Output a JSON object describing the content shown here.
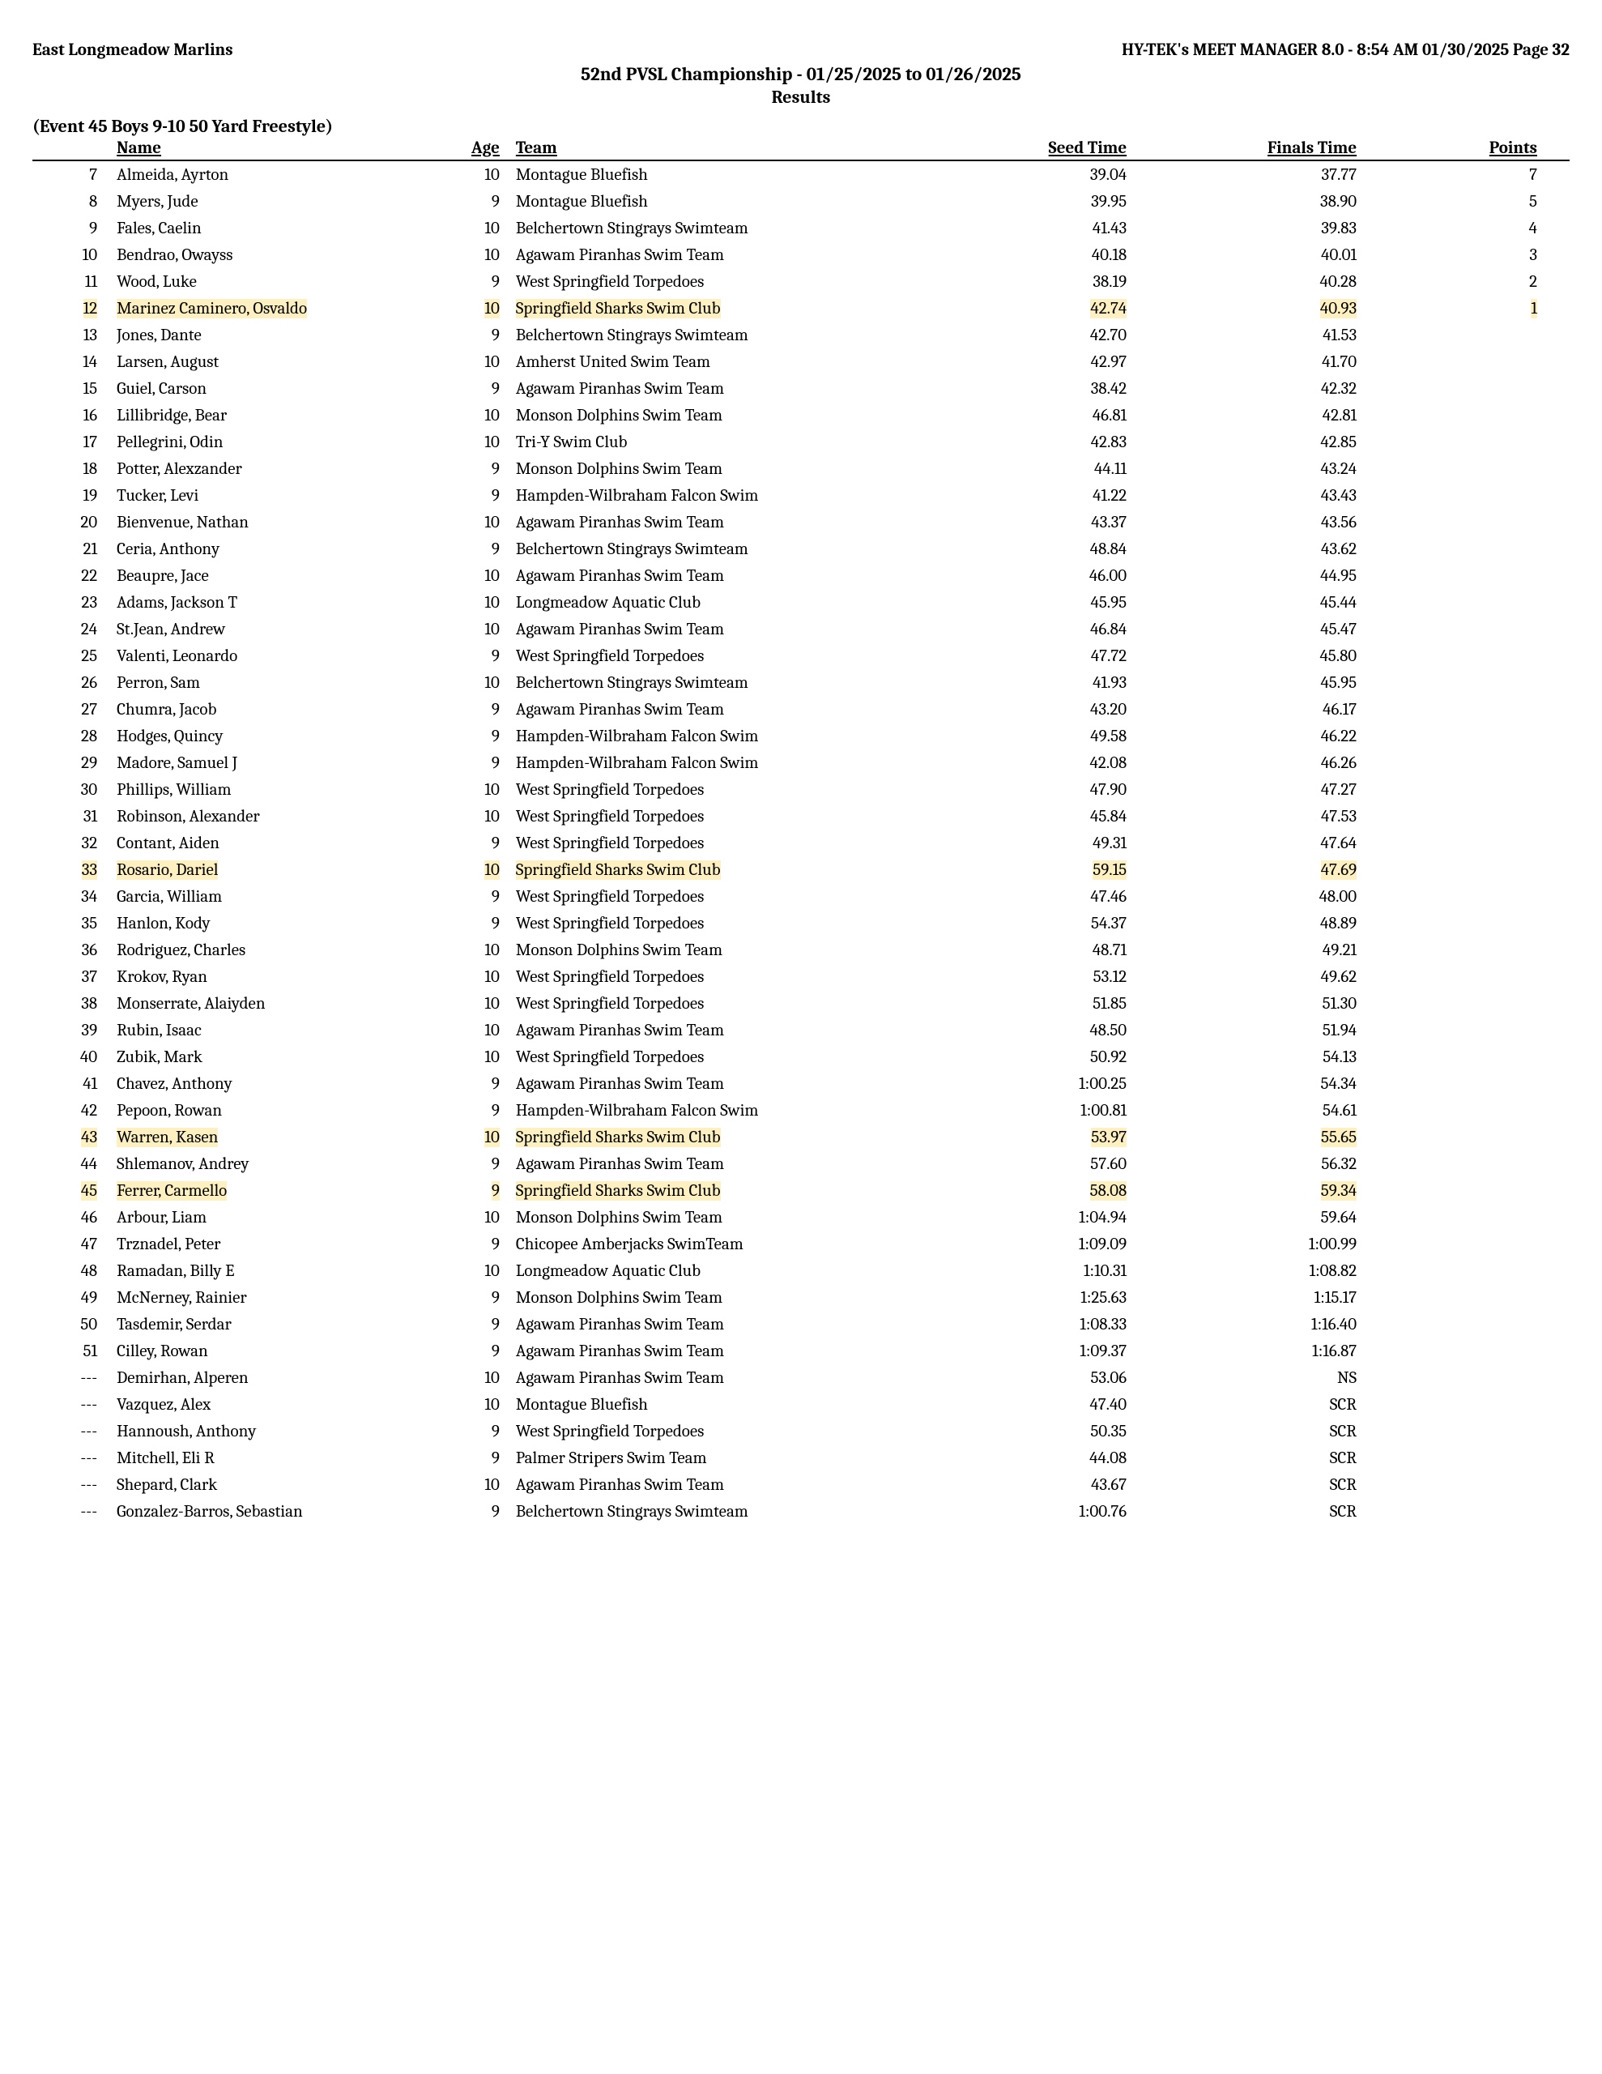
{
  "header": {
    "left": "East Longmeadow Marlins",
    "right": "HY-TEK's MEET MANAGER 8.0 - 8:54 AM  01/30/2025  Page 32",
    "title": "52nd PVSL Championship - 01/25/2025 to 01/26/2025",
    "subtitle": "Results"
  },
  "event_label": "(Event 45  Boys 9-10 50 Yard Freestyle)",
  "columns": {
    "name": "Name",
    "age": "Age",
    "team": "Team",
    "seed": "Seed Time",
    "final": "Finals Time",
    "points": "Points"
  },
  "highlight_color": "#fef0c0",
  "rows": [
    {
      "place": "7",
      "name": "Almeida, Ayrton",
      "age": "10",
      "team": "Montague Bluefish",
      "seed": "39.04",
      "final": "37.77",
      "points": "7",
      "hl": false
    },
    {
      "place": "8",
      "name": "Myers, Jude",
      "age": "9",
      "team": "Montague Bluefish",
      "seed": "39.95",
      "final": "38.90",
      "points": "5",
      "hl": false
    },
    {
      "place": "9",
      "name": "Fales, Caelin",
      "age": "10",
      "team": "Belchertown Stingrays Swimteam",
      "seed": "41.43",
      "final": "39.83",
      "points": "4",
      "hl": false
    },
    {
      "place": "10",
      "name": "Bendrao, Owayss",
      "age": "10",
      "team": "Agawam Piranhas Swim Team",
      "seed": "40.18",
      "final": "40.01",
      "points": "3",
      "hl": false
    },
    {
      "place": "11",
      "name": "Wood, Luke",
      "age": "9",
      "team": "West Springfield Torpedoes",
      "seed": "38.19",
      "final": "40.28",
      "points": "2",
      "hl": false
    },
    {
      "place": "12",
      "name": "Marinez Caminero, Osvaldo",
      "age": "10",
      "team": "Springfield Sharks Swim Club",
      "seed": "42.74",
      "final": "40.93",
      "points": "1",
      "hl": true
    },
    {
      "place": "13",
      "name": "Jones, Dante",
      "age": "9",
      "team": "Belchertown Stingrays Swimteam",
      "seed": "42.70",
      "final": "41.53",
      "points": "",
      "hl": false
    },
    {
      "place": "14",
      "name": "Larsen, August",
      "age": "10",
      "team": "Amherst United Swim Team",
      "seed": "42.97",
      "final": "41.70",
      "points": "",
      "hl": false
    },
    {
      "place": "15",
      "name": "Guiel, Carson",
      "age": "9",
      "team": "Agawam Piranhas Swim Team",
      "seed": "38.42",
      "final": "42.32",
      "points": "",
      "hl": false
    },
    {
      "place": "16",
      "name": "Lillibridge, Bear",
      "age": "10",
      "team": "Monson Dolphins Swim Team",
      "seed": "46.81",
      "final": "42.81",
      "points": "",
      "hl": false
    },
    {
      "place": "17",
      "name": "Pellegrini, Odin",
      "age": "10",
      "team": "Tri-Y Swim Club",
      "seed": "42.83",
      "final": "42.85",
      "points": "",
      "hl": false
    },
    {
      "place": "18",
      "name": "Potter, Alexzander",
      "age": "9",
      "team": "Monson Dolphins Swim Team",
      "seed": "44.11",
      "final": "43.24",
      "points": "",
      "hl": false
    },
    {
      "place": "19",
      "name": "Tucker, Levi",
      "age": "9",
      "team": "Hampden-Wilbraham Falcon Swim",
      "seed": "41.22",
      "final": "43.43",
      "points": "",
      "hl": false
    },
    {
      "place": "20",
      "name": "Bienvenue, Nathan",
      "age": "10",
      "team": "Agawam Piranhas Swim Team",
      "seed": "43.37",
      "final": "43.56",
      "points": "",
      "hl": false
    },
    {
      "place": "21",
      "name": "Ceria, Anthony",
      "age": "9",
      "team": "Belchertown Stingrays Swimteam",
      "seed": "48.84",
      "final": "43.62",
      "points": "",
      "hl": false
    },
    {
      "place": "22",
      "name": "Beaupre, Jace",
      "age": "10",
      "team": "Agawam Piranhas Swim Team",
      "seed": "46.00",
      "final": "44.95",
      "points": "",
      "hl": false
    },
    {
      "place": "23",
      "name": "Adams, Jackson T",
      "age": "10",
      "team": "Longmeadow Aquatic Club",
      "seed": "45.95",
      "final": "45.44",
      "points": "",
      "hl": false
    },
    {
      "place": "24",
      "name": "St.Jean, Andrew",
      "age": "10",
      "team": "Agawam Piranhas Swim Team",
      "seed": "46.84",
      "final": "45.47",
      "points": "",
      "hl": false
    },
    {
      "place": "25",
      "name": "Valenti, Leonardo",
      "age": "9",
      "team": "West Springfield Torpedoes",
      "seed": "47.72",
      "final": "45.80",
      "points": "",
      "hl": false
    },
    {
      "place": "26",
      "name": "Perron, Sam",
      "age": "10",
      "team": "Belchertown Stingrays Swimteam",
      "seed": "41.93",
      "final": "45.95",
      "points": "",
      "hl": false
    },
    {
      "place": "27",
      "name": "Chumra, Jacob",
      "age": "9",
      "team": "Agawam Piranhas Swim Team",
      "seed": "43.20",
      "final": "46.17",
      "points": "",
      "hl": false
    },
    {
      "place": "28",
      "name": "Hodges, Quincy",
      "age": "9",
      "team": "Hampden-Wilbraham Falcon Swim",
      "seed": "49.58",
      "final": "46.22",
      "points": "",
      "hl": false
    },
    {
      "place": "29",
      "name": "Madore, Samuel J",
      "age": "9",
      "team": "Hampden-Wilbraham Falcon Swim",
      "seed": "42.08",
      "final": "46.26",
      "points": "",
      "hl": false
    },
    {
      "place": "30",
      "name": "Phillips, William",
      "age": "10",
      "team": "West Springfield Torpedoes",
      "seed": "47.90",
      "final": "47.27",
      "points": "",
      "hl": false
    },
    {
      "place": "31",
      "name": "Robinson, Alexander",
      "age": "10",
      "team": "West Springfield Torpedoes",
      "seed": "45.84",
      "final": "47.53",
      "points": "",
      "hl": false
    },
    {
      "place": "32",
      "name": "Contant, Aiden",
      "age": "9",
      "team": "West Springfield Torpedoes",
      "seed": "49.31",
      "final": "47.64",
      "points": "",
      "hl": false
    },
    {
      "place": "33",
      "name": "Rosario, Dariel",
      "age": "10",
      "team": "Springfield Sharks Swim Club",
      "seed": "59.15",
      "final": "47.69",
      "points": "",
      "hl": true
    },
    {
      "place": "34",
      "name": "Garcia, William",
      "age": "9",
      "team": "West Springfield Torpedoes",
      "seed": "47.46",
      "final": "48.00",
      "points": "",
      "hl": false
    },
    {
      "place": "35",
      "name": "Hanlon, Kody",
      "age": "9",
      "team": "West Springfield Torpedoes",
      "seed": "54.37",
      "final": "48.89",
      "points": "",
      "hl": false
    },
    {
      "place": "36",
      "name": "Rodriguez, Charles",
      "age": "10",
      "team": "Monson Dolphins Swim Team",
      "seed": "48.71",
      "final": "49.21",
      "points": "",
      "hl": false
    },
    {
      "place": "37",
      "name": "Krokov, Ryan",
      "age": "10",
      "team": "West Springfield Torpedoes",
      "seed": "53.12",
      "final": "49.62",
      "points": "",
      "hl": false
    },
    {
      "place": "38",
      "name": "Monserrate, Alaiyden",
      "age": "10",
      "team": "West Springfield Torpedoes",
      "seed": "51.85",
      "final": "51.30",
      "points": "",
      "hl": false
    },
    {
      "place": "39",
      "name": "Rubin, Isaac",
      "age": "10",
      "team": "Agawam Piranhas Swim Team",
      "seed": "48.50",
      "final": "51.94",
      "points": "",
      "hl": false
    },
    {
      "place": "40",
      "name": "Zubik, Mark",
      "age": "10",
      "team": "West Springfield Torpedoes",
      "seed": "50.92",
      "final": "54.13",
      "points": "",
      "hl": false
    },
    {
      "place": "41",
      "name": "Chavez, Anthony",
      "age": "9",
      "team": "Agawam Piranhas Swim Team",
      "seed": "1:00.25",
      "final": "54.34",
      "points": "",
      "hl": false
    },
    {
      "place": "42",
      "name": "Pepoon, Rowan",
      "age": "9",
      "team": "Hampden-Wilbraham Falcon Swim",
      "seed": "1:00.81",
      "final": "54.61",
      "points": "",
      "hl": false
    },
    {
      "place": "43",
      "name": "Warren, Kasen",
      "age": "10",
      "team": "Springfield Sharks Swim Club",
      "seed": "53.97",
      "final": "55.65",
      "points": "",
      "hl": true
    },
    {
      "place": "44",
      "name": "Shlemanov, Andrey",
      "age": "9",
      "team": "Agawam Piranhas Swim Team",
      "seed": "57.60",
      "final": "56.32",
      "points": "",
      "hl": false
    },
    {
      "place": "45",
      "name": "Ferrer, Carmello",
      "age": "9",
      "team": "Springfield Sharks Swim Club",
      "seed": "58.08",
      "final": "59.34",
      "points": "",
      "hl": true
    },
    {
      "place": "46",
      "name": "Arbour, Liam",
      "age": "10",
      "team": "Monson Dolphins Swim Team",
      "seed": "1:04.94",
      "final": "59.64",
      "points": "",
      "hl": false
    },
    {
      "place": "47",
      "name": "Trznadel, Peter",
      "age": "9",
      "team": "Chicopee Amberjacks SwimTeam",
      "seed": "1:09.09",
      "final": "1:00.99",
      "points": "",
      "hl": false
    },
    {
      "place": "48",
      "name": "Ramadan, Billy E",
      "age": "10",
      "team": "Longmeadow Aquatic Club",
      "seed": "1:10.31",
      "final": "1:08.82",
      "points": "",
      "hl": false
    },
    {
      "place": "49",
      "name": "McNerney, Rainier",
      "age": "9",
      "team": "Monson Dolphins Swim Team",
      "seed": "1:25.63",
      "final": "1:15.17",
      "points": "",
      "hl": false
    },
    {
      "place": "50",
      "name": "Tasdemir, Serdar",
      "age": "9",
      "team": "Agawam Piranhas Swim Team",
      "seed": "1:08.33",
      "final": "1:16.40",
      "points": "",
      "hl": false
    },
    {
      "place": "51",
      "name": "Cilley, Rowan",
      "age": "9",
      "team": "Agawam Piranhas Swim Team",
      "seed": "1:09.37",
      "final": "1:16.87",
      "points": "",
      "hl": false
    },
    {
      "place": "---",
      "name": "Demirhan, Alperen",
      "age": "10",
      "team": "Agawam Piranhas Swim Team",
      "seed": "53.06",
      "final": "NS",
      "points": "",
      "hl": false
    },
    {
      "place": "---",
      "name": "Vazquez, Alex",
      "age": "10",
      "team": "Montague Bluefish",
      "seed": "47.40",
      "final": "SCR",
      "points": "",
      "hl": false
    },
    {
      "place": "---",
      "name": "Hannoush, Anthony",
      "age": "9",
      "team": "West Springfield Torpedoes",
      "seed": "50.35",
      "final": "SCR",
      "points": "",
      "hl": false
    },
    {
      "place": "---",
      "name": "Mitchell, Eli R",
      "age": "9",
      "team": "Palmer Stripers Swim Team",
      "seed": "44.08",
      "final": "SCR",
      "points": "",
      "hl": false
    },
    {
      "place": "---",
      "name": "Shepard, Clark",
      "age": "10",
      "team": "Agawam Piranhas Swim Team",
      "seed": "43.67",
      "final": "SCR",
      "points": "",
      "hl": false
    },
    {
      "place": "---",
      "name": "Gonzalez-Barros, Sebastian",
      "age": "9",
      "team": "Belchertown Stingrays Swimteam",
      "seed": "1:00.76",
      "final": "SCR",
      "points": "",
      "hl": false
    }
  ]
}
